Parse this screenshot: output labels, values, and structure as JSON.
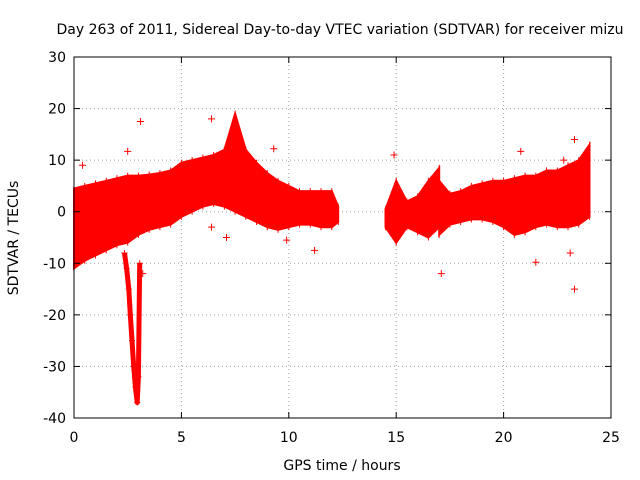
{
  "chart_data": {
    "type": "scatter",
    "title": "Day 263 of 2011, Sidereal Day-to-day VTEC variation (SDTVAR) for receiver mizu",
    "xlabel": "GPS time / hours",
    "ylabel": "SDTVAR / TECUs",
    "xlim": [
      0,
      25
    ],
    "ylim": [
      -40,
      30
    ],
    "xticks": [
      0,
      5,
      10,
      15,
      20,
      25
    ],
    "yticks": [
      -40,
      -30,
      -20,
      -10,
      0,
      10,
      20,
      30
    ],
    "grid": true,
    "color": "#ff0000",
    "marker": "plus",
    "series": [
      {
        "name": "sdtvar",
        "segments": [
          {
            "x": [
              0.0,
              0.5,
              1.0,
              1.5,
              2.0,
              2.5,
              3.0,
              3.5,
              4.0,
              4.5,
              5.0,
              5.5,
              6.0,
              6.5,
              7.0,
              7.5,
              8.0,
              8.5,
              9.0,
              9.5,
              10.0,
              10.5,
              11.0,
              11.5,
              12.0,
              12.3
            ],
            "upper": [
              4.5,
              5.0,
              5.5,
              6.0,
              6.5,
              7.0,
              7.0,
              7.2,
              7.5,
              8.0,
              9.5,
              10.0,
              10.5,
              11.0,
              12.0,
              19.0,
              12.0,
              9.5,
              7.5,
              6.0,
              5.0,
              4.0,
              4.0,
              4.0,
              4.0,
              1.0
            ],
            "lower": [
              -11.0,
              -9.5,
              -8.5,
              -7.5,
              -6.5,
              -6.0,
              -4.5,
              -3.5,
              -3.0,
              -2.5,
              -1.0,
              0.0,
              1.0,
              1.5,
              1.0,
              0.0,
              -1.0,
              -2.0,
              -3.0,
              -3.5,
              -3.0,
              -2.5,
              -2.5,
              -3.0,
              -3.0,
              -2.0
            ]
          },
          {
            "x": [
              14.5,
              15.0,
              15.5,
              16.0,
              16.5,
              17.0
            ],
            "upper": [
              0.5,
              6.0,
              2.0,
              3.0,
              6.0,
              8.5
            ],
            "lower": [
              -3.0,
              -6.0,
              -3.0,
              -4.0,
              -5.0,
              -3.0
            ]
          },
          {
            "x": [
              17.0,
              17.5,
              18.0,
              18.5,
              19.0,
              19.5,
              20.0,
              20.5,
              21.0,
              21.5,
              22.0,
              22.5,
              23.0,
              23.5,
              24.0
            ],
            "upper": [
              6.0,
              3.5,
              4.0,
              5.0,
              5.5,
              6.0,
              6.0,
              6.5,
              7.0,
              7.0,
              8.0,
              8.0,
              9.0,
              10.0,
              13.0
            ],
            "lower": [
              -4.5,
              -2.5,
              -2.0,
              -1.5,
              -1.5,
              -2.0,
              -3.0,
              -4.5,
              -4.0,
              -3.0,
              -2.5,
              -3.0,
              -3.0,
              -2.5,
              -1.0
            ]
          }
        ],
        "dip": {
          "x": [
            2.35,
            2.45,
            2.55,
            2.62,
            2.7,
            2.78,
            2.86,
            2.94,
            3.0,
            3.06
          ],
          "y": [
            -8.0,
            -11.0,
            -15.0,
            -20.0,
            -25.0,
            -30.0,
            -34.0,
            -37.0,
            -32.0,
            -10.0
          ]
        },
        "outliers": [
          {
            "x": 0.4,
            "y": 9.0
          },
          {
            "x": 2.5,
            "y": 11.7
          },
          {
            "x": 3.1,
            "y": 17.5
          },
          {
            "x": 3.2,
            "y": -12.0
          },
          {
            "x": 6.4,
            "y": 18.0
          },
          {
            "x": 6.4,
            "y": -3.0
          },
          {
            "x": 7.1,
            "y": -5.0
          },
          {
            "x": 9.3,
            "y": 12.2
          },
          {
            "x": 9.9,
            "y": -5.5
          },
          {
            "x": 11.2,
            "y": -7.5
          },
          {
            "x": 14.9,
            "y": 11.0
          },
          {
            "x": 17.1,
            "y": -12.0
          },
          {
            "x": 20.8,
            "y": 11.7
          },
          {
            "x": 21.5,
            "y": -9.8
          },
          {
            "x": 22.8,
            "y": 10.0
          },
          {
            "x": 23.1,
            "y": -8.0
          },
          {
            "x": 23.3,
            "y": 14.0
          },
          {
            "x": 23.3,
            "y": -15.0
          }
        ]
      }
    ]
  }
}
